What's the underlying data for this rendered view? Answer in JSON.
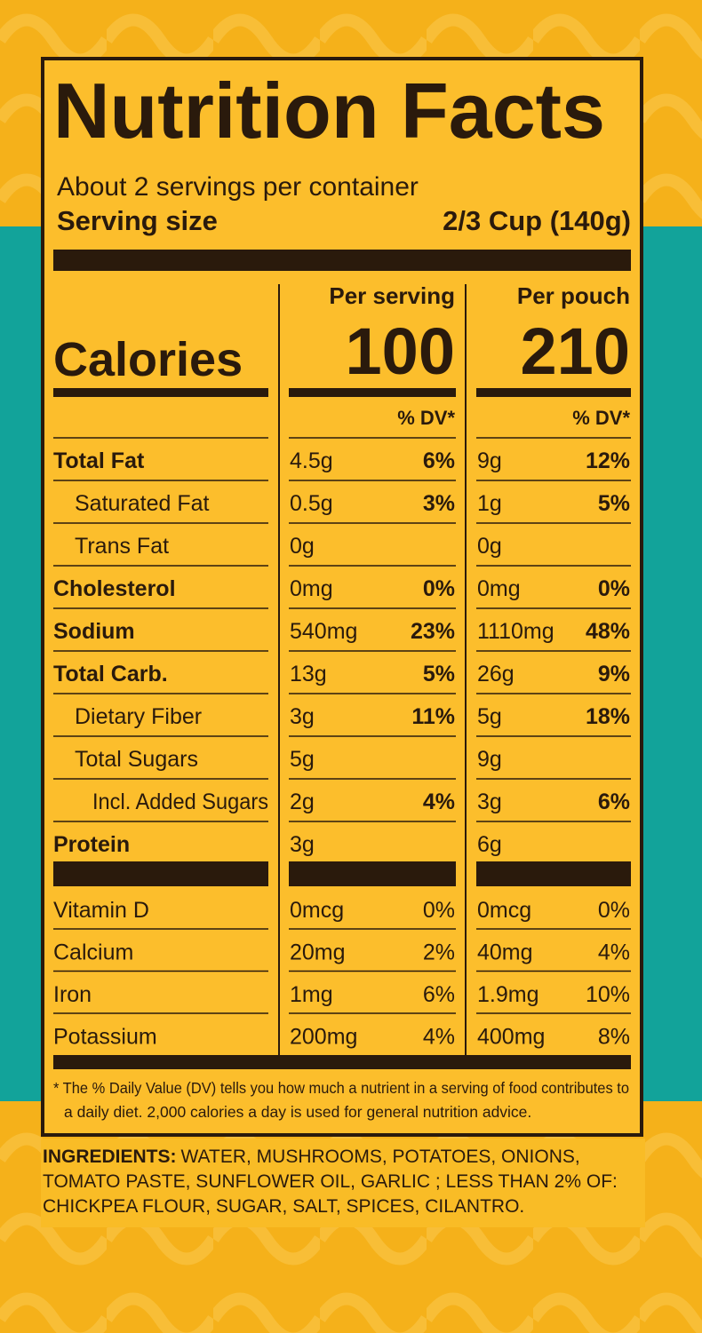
{
  "label": {
    "title": "Nutrition Facts",
    "servings": "About 2 servings per container",
    "serving_size_label": "Serving size",
    "serving_size_value": "2/3 Cup (140g)",
    "columns": [
      "Per serving",
      "Per pouch"
    ],
    "calories_label": "Calories",
    "calories": [
      "100",
      "210"
    ],
    "dv_header": "% DV*",
    "nutrients": [
      {
        "name": "Total Fat",
        "bold": true,
        "indent": 0,
        "serving": [
          "4.5g",
          "6%"
        ],
        "pouch": [
          "9g",
          "12%"
        ]
      },
      {
        "name": "Saturated Fat",
        "bold": false,
        "indent": 1,
        "serving": [
          "0.5g",
          "3%"
        ],
        "pouch": [
          "1g",
          "5%"
        ]
      },
      {
        "name": "Trans Fat",
        "bold": false,
        "indent": 1,
        "serving": [
          "0g",
          null
        ],
        "pouch": [
          "0g",
          null
        ]
      },
      {
        "name": "Cholesterol",
        "bold": true,
        "indent": 0,
        "serving": [
          "0mg",
          "0%"
        ],
        "pouch": [
          "0mg",
          "0%"
        ]
      },
      {
        "name": "Sodium",
        "bold": true,
        "indent": 0,
        "serving": [
          "540mg",
          "23%"
        ],
        "pouch": [
          "1110mg",
          "48%"
        ]
      },
      {
        "name": "Total Carb.",
        "bold": true,
        "indent": 0,
        "serving": [
          "13g",
          "5%"
        ],
        "pouch": [
          "26g",
          "9%"
        ]
      },
      {
        "name": "Dietary Fiber",
        "bold": false,
        "indent": 1,
        "serving": [
          "3g",
          "11%"
        ],
        "pouch": [
          "5g",
          "18%"
        ]
      },
      {
        "name": "Total Sugars",
        "bold": false,
        "indent": 1,
        "serving": [
          "5g",
          null
        ],
        "pouch": [
          "9g",
          null
        ]
      },
      {
        "name": "Incl. Added Sugars",
        "bold": false,
        "indent": 2,
        "serving": [
          "2g",
          "4%"
        ],
        "pouch": [
          "3g",
          "6%"
        ]
      },
      {
        "name": "Protein",
        "bold": true,
        "indent": 0,
        "serving": [
          "3g",
          null
        ],
        "pouch": [
          "6g",
          null
        ]
      }
    ],
    "vitamins": [
      {
        "name": "Vitamin D",
        "serving": [
          "0mcg",
          "0%"
        ],
        "pouch": [
          "0mcg",
          "0%"
        ]
      },
      {
        "name": "Calcium",
        "serving": [
          "20mg",
          "2%"
        ],
        "pouch": [
          "40mg",
          "4%"
        ]
      },
      {
        "name": "Iron",
        "serving": [
          "1mg",
          "6%"
        ],
        "pouch": [
          "1.9mg",
          "10%"
        ]
      },
      {
        "name": "Potassium",
        "serving": [
          "200mg",
          "4%"
        ],
        "pouch": [
          "400mg",
          "8%"
        ]
      }
    ],
    "footnote": [
      "* The % Daily Value (DV) tells you how much a nutrient in a serving of food contributes to",
      "a daily diet. 2,000 calories a day is used for general nutrition advice."
    ]
  },
  "ingredients": {
    "label": "INGREDIENTS:",
    "lines": [
      "WATER, MUSHROOMS, POTATOES, ONIONS,",
      "TOMATO PASTE, SUNFLOWER OIL, GARLIC ; LESS THAN 2% OF:",
      "CHICKPEA FLOUR, SUGAR, SALT, SPICES, CILANTRO."
    ]
  }
}
